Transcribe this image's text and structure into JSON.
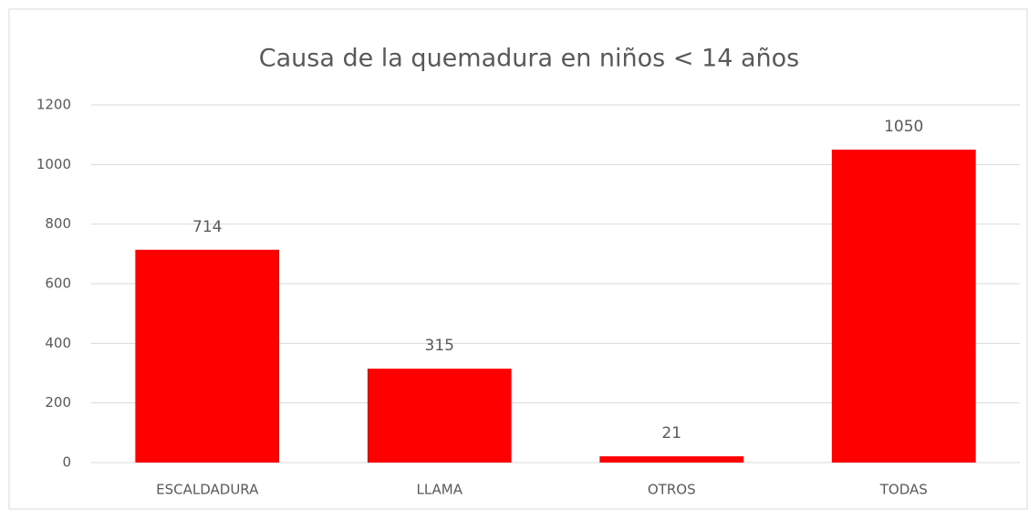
{
  "chart_data": {
    "type": "bar",
    "title": "Causa de la quemadura  en niños < 14 años",
    "categories": [
      "ESCALDADURA",
      "LLAMA",
      "OTROS",
      "TODAS"
    ],
    "values": [
      714,
      315,
      21,
      1050
    ],
    "color": "#ff0000",
    "ylim": [
      0,
      1200
    ],
    "yticks": [
      0,
      200,
      400,
      600,
      800,
      1000,
      1200
    ],
    "grid": true
  }
}
